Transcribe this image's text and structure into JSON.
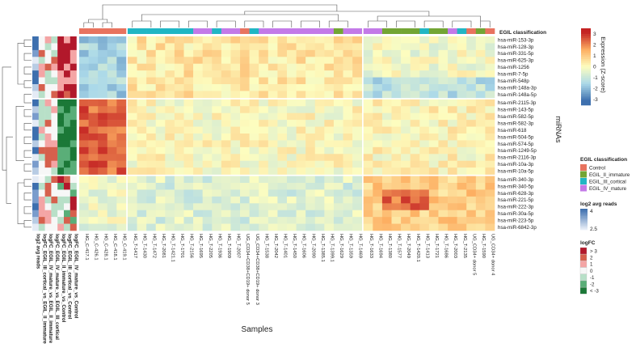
{
  "chart_data": {
    "type": "heatmap",
    "title": "",
    "xlabel": "Samples",
    "ylabel": "miRNAs",
    "col_annotation_label": "EGIL classification",
    "rows": [
      "hsa-miR-153-3p",
      "hsa-miR-128-3p",
      "hsa-miR-331-5p",
      "hsa-miR-625-3p",
      "hsa-miR-1256",
      "hsa-miR-7-5p",
      "hsa-miR-548p",
      "hsa-miR-148a-3p",
      "hsa-miR-148a-5p",
      "hsa-miR-2115-3p",
      "hsa-miR-143-5p",
      "hsa-miR-582-5p",
      "hsa-miR-582-3p",
      "hsa-miR-618",
      "hsa-miR-504-5p",
      "hsa-miR-574-5p",
      "hsa-miR-1249-5p",
      "hsa-miR-2116-3p",
      "hsa-miR-10a-3p",
      "hsa-miR-10a-5p",
      "hsa-miR-340-3p",
      "hsa-miR-340-5p",
      "hsa-miR-628-3p",
      "hsa-miR-221-5p",
      "hsa-miR-222-3p",
      "hsa-miR-30a-5p",
      "hsa-miR-223-5p",
      "hsa-miR-6842-3p"
    ],
    "row_groups": [
      9,
      11,
      8
    ],
    "col_groups": [
      5,
      25,
      14
    ],
    "columns": [
      "HG_C-417.1",
      "HG_C-426.1",
      "HG_C-428.1",
      "HG_C-418.1",
      "HG_C-419.1",
      "HG_T-1417",
      "HG_T-1430",
      "HG_T-1472",
      "HG_T-2081",
      "HG_T-1421.1",
      "HG_T-1701",
      "HG_T-2156",
      "HG_T-1695",
      "HG_T-2205",
      "HG_T-1936",
      "HG_T-1909",
      "HG_T-2007",
      "UG_CD34+CD38+CD19+ donor 5",
      "UG_CD34+CD38+CD19+ donor 3",
      "HG_T-1538",
      "HG_T-2042",
      "HG_T-1401",
      "HG_T-1450",
      "HG_T-1606",
      "HG_T-2090",
      "HG_T-1385.1",
      "HG_T-1399.1",
      "HG_T-1629",
      "HG_T-1359",
      "HG_T-1469",
      "HG_T-1633",
      "HG_T-1694",
      "HG_T-1380",
      "HG_T-1577",
      "HG_T-2049",
      "HG_T-1420.1",
      "HG_T-1413",
      "HG_T-1721",
      "HG_T-1686",
      "HG_T-2003",
      "HG_T-2135",
      "UG_CD34+ donor 5",
      "HG_T-1590",
      "UG_CD34+ donor 4"
    ],
    "column_classes": [
      "Control",
      "Control",
      "Control",
      "Control",
      "Control",
      "EGIL_III_cortical",
      "EGIL_III_cortical",
      "EGIL_III_cortical",
      "EGIL_III_cortical",
      "EGIL_III_cortical",
      "EGIL_III_cortical",
      "EGIL_III_cortical",
      "EGIL_IV_mature",
      "EGIL_IV_mature",
      "EGIL_III_cortical",
      "EGIL_IV_mature",
      "EGIL_IV_mature",
      "Control",
      "EGIL_III_cortical",
      "EGIL_IV_mature",
      "EGIL_IV_mature",
      "EGIL_IV_mature",
      "EGIL_IV_mature",
      "EGIL_IV_mature",
      "EGIL_IV_mature",
      "EGIL_IV_mature",
      "EGIL_IV_mature",
      "EGIL_II_immature",
      "EGIL_IV_mature",
      "EGIL_IV_mature",
      "EGIL_IV_mature",
      "EGIL_IV_mature",
      "EGIL_II_immature",
      "EGIL_II_immature",
      "EGIL_II_immature",
      "EGIL_II_immature",
      "EGIL_III_cortical",
      "EGIL_II_immature",
      "EGIL_II_immature",
      "EGIL_IV_mature",
      "EGIL_III_cortical",
      "Control",
      "EGIL_II_immature",
      "Control"
    ],
    "row_annotation_labels": [
      "log2 avg reads",
      "logFC_EGIL_III_cortical_vs_EGIL_II_immature",
      "logFC_EGIL_IV_mature_vs_EGIL_II_immature",
      "logFC_EGIL_IV_mature_vs_EGIL_III_cortical",
      "logFC_EGIL_II_immature_vs_Control",
      "logFC_EGIL_III_cortical_vs_Control",
      "logFC_EGIL_IV_mature_vs_Control"
    ],
    "expression_legend": {
      "title": "Expression (Z-score)",
      "ticks": [
        "3",
        "2",
        "1",
        "0",
        "-1",
        "-2",
        "-3"
      ],
      "range": [
        -3,
        3
      ]
    },
    "class_legend": {
      "title": "EGIL classification",
      "entries": [
        "Control",
        "EGIL_II_immature",
        "EGIL_III_cortical",
        "EGIL_IV_mature"
      ]
    },
    "reads_legend": {
      "title": "log2 avg reads",
      "ticks": [
        "4",
        "2.5"
      ]
    },
    "logfc_legend": {
      "title": "logFC",
      "entries": [
        "> 3",
        "2",
        "1",
        "0",
        "-1",
        "-2",
        "< -3"
      ]
    },
    "colors": {
      "Control": "#e8735f",
      "EGIL_II_immature": "#73a534",
      "EGIL_III_cortical": "#21b6c4",
      "EGIL_IV_mature": "#c37ae8",
      "high": "#c42323",
      "mid": "#fdfdbf",
      "low": "#3d6fae"
    }
  }
}
